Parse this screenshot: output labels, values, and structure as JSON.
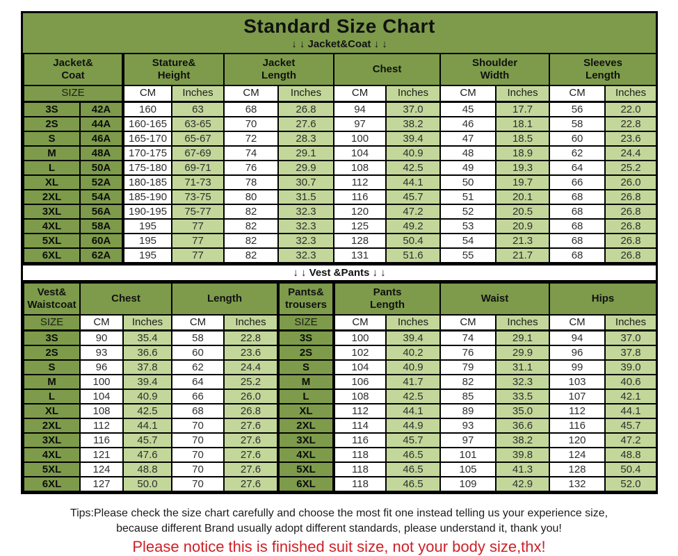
{
  "title": "Standard Size Chart",
  "banners": {
    "jacket": "↓ ↓  Jacket&Coat  ↓ ↓",
    "vest": "↓ ↓  Vest &Pants  ↓ ↓"
  },
  "colors": {
    "olive": "#7d9b4a",
    "cell_green": "#c3d79a",
    "notice_red": "#cc2128"
  },
  "chart_data": [
    {
      "type": "table",
      "title": "Jacket&Coat",
      "group_columns": [
        {
          "lines": [
            "Jacket&",
            "Coat"
          ],
          "span": 2
        },
        {
          "lines": [
            "Stature&",
            "Height"
          ],
          "span": 2
        },
        {
          "lines": [
            "Jacket",
            "Length"
          ],
          "span": 2
        },
        {
          "lines": [
            "Chest"
          ],
          "span": 2
        },
        {
          "lines": [
            "Shoulder",
            "Width"
          ],
          "span": 2
        },
        {
          "lines": [
            "Sleeves",
            "Length"
          ],
          "span": 2
        }
      ],
      "unit_columns": [
        {
          "label": "SIZE",
          "span": 2,
          "kind": "size"
        },
        {
          "label": "CM",
          "span": 1,
          "kind": "cm"
        },
        {
          "label": "Inches",
          "span": 1,
          "kind": "inches"
        },
        {
          "label": "CM",
          "span": 1,
          "kind": "cm"
        },
        {
          "label": "Inches",
          "span": 1,
          "kind": "inches"
        },
        {
          "label": "CM",
          "span": 1,
          "kind": "cm"
        },
        {
          "label": "Inches",
          "span": 1,
          "kind": "inches"
        },
        {
          "label": "CM",
          "span": 1,
          "kind": "cm"
        },
        {
          "label": "Inches",
          "span": 1,
          "kind": "inches"
        },
        {
          "label": "CM",
          "span": 1,
          "kind": "cm"
        },
        {
          "label": "Inches",
          "span": 1,
          "kind": "inches"
        }
      ],
      "rows": [
        [
          "3S",
          "42A",
          "160",
          "63",
          "68",
          "26.8",
          "94",
          "37.0",
          "45",
          "17.7",
          "56",
          "22.0"
        ],
        [
          "2S",
          "44A",
          "160-165",
          "63-65",
          "70",
          "27.6",
          "97",
          "38.2",
          "46",
          "18.1",
          "58",
          "22.8"
        ],
        [
          "S",
          "46A",
          "165-170",
          "65-67",
          "72",
          "28.3",
          "100",
          "39.4",
          "47",
          "18.5",
          "60",
          "23.6"
        ],
        [
          "M",
          "48A",
          "170-175",
          "67-69",
          "74",
          "29.1",
          "104",
          "40.9",
          "48",
          "18.9",
          "62",
          "24.4"
        ],
        [
          "L",
          "50A",
          "175-180",
          "69-71",
          "76",
          "29.9",
          "108",
          "42.5",
          "49",
          "19.3",
          "64",
          "25.2"
        ],
        [
          "XL",
          "52A",
          "180-185",
          "71-73",
          "78",
          "30.7",
          "112",
          "44.1",
          "50",
          "19.7",
          "66",
          "26.0"
        ],
        [
          "2XL",
          "54A",
          "185-190",
          "73-75",
          "80",
          "31.5",
          "116",
          "45.7",
          "51",
          "20.1",
          "68",
          "26.8"
        ],
        [
          "3XL",
          "56A",
          "190-195",
          "75-77",
          "82",
          "32.3",
          "120",
          "47.2",
          "52",
          "20.5",
          "68",
          "26.8"
        ],
        [
          "4XL",
          "58A",
          "195",
          "77",
          "82",
          "32.3",
          "125",
          "49.2",
          "53",
          "20.9",
          "68",
          "26.8"
        ],
        [
          "5XL",
          "60A",
          "195",
          "77",
          "82",
          "32.3",
          "128",
          "50.4",
          "54",
          "21.3",
          "68",
          "26.8"
        ],
        [
          "6XL",
          "62A",
          "195",
          "77",
          "82",
          "32.3",
          "131",
          "51.6",
          "55",
          "21.7",
          "68",
          "26.8"
        ]
      ]
    },
    {
      "type": "table",
      "title": "Vest &Pants",
      "group_columns": [
        {
          "lines": [
            "Vest&",
            "Waistcoat"
          ],
          "span": 1
        },
        {
          "lines": [
            "Chest"
          ],
          "span": 2
        },
        {
          "lines": [
            "Length"
          ],
          "span": 2
        },
        {
          "lines": [
            "Pants&",
            "trousers"
          ],
          "span": 1
        },
        {
          "lines": [
            "Pants",
            "Length"
          ],
          "span": 2
        },
        {
          "lines": [
            "Waist"
          ],
          "span": 2
        },
        {
          "lines": [
            "Hips"
          ],
          "span": 2
        }
      ],
      "unit_columns": [
        {
          "label": "SIZE",
          "span": 1,
          "kind": "size"
        },
        {
          "label": "CM",
          "span": 1,
          "kind": "cm"
        },
        {
          "label": "Inches",
          "span": 1,
          "kind": "inches"
        },
        {
          "label": "CM",
          "span": 1,
          "kind": "cm"
        },
        {
          "label": "Inches",
          "span": 1,
          "kind": "inches"
        },
        {
          "label": "SIZE",
          "span": 1,
          "kind": "size"
        },
        {
          "label": "CM",
          "span": 1,
          "kind": "cm"
        },
        {
          "label": "Inches",
          "span": 1,
          "kind": "inches"
        },
        {
          "label": "CM",
          "span": 1,
          "kind": "cm"
        },
        {
          "label": "Inches",
          "span": 1,
          "kind": "inches"
        },
        {
          "label": "CM",
          "span": 1,
          "kind": "cm"
        },
        {
          "label": "Inches",
          "span": 1,
          "kind": "inches"
        }
      ],
      "rows": [
        [
          "3S",
          "90",
          "35.4",
          "58",
          "22.8",
          "3S",
          "100",
          "39.4",
          "74",
          "29.1",
          "94",
          "37.0"
        ],
        [
          "2S",
          "93",
          "36.6",
          "60",
          "23.6",
          "2S",
          "102",
          "40.2",
          "76",
          "29.9",
          "96",
          "37.8"
        ],
        [
          "S",
          "96",
          "37.8",
          "62",
          "24.4",
          "S",
          "104",
          "40.9",
          "79",
          "31.1",
          "99",
          "39.0"
        ],
        [
          "M",
          "100",
          "39.4",
          "64",
          "25.2",
          "M",
          "106",
          "41.7",
          "82",
          "32.3",
          "103",
          "40.6"
        ],
        [
          "L",
          "104",
          "40.9",
          "66",
          "26.0",
          "L",
          "108",
          "42.5",
          "85",
          "33.5",
          "107",
          "42.1"
        ],
        [
          "XL",
          "108",
          "42.5",
          "68",
          "26.8",
          "XL",
          "112",
          "44.1",
          "89",
          "35.0",
          "112",
          "44.1"
        ],
        [
          "2XL",
          "112",
          "44.1",
          "70",
          "27.6",
          "2XL",
          "114",
          "44.9",
          "93",
          "36.6",
          "116",
          "45.7"
        ],
        [
          "3XL",
          "116",
          "45.7",
          "70",
          "27.6",
          "3XL",
          "116",
          "45.7",
          "97",
          "38.2",
          "120",
          "47.2"
        ],
        [
          "4XL",
          "121",
          "47.6",
          "70",
          "27.6",
          "4XL",
          "118",
          "46.5",
          "101",
          "39.8",
          "124",
          "48.8"
        ],
        [
          "5XL",
          "124",
          "48.8",
          "70",
          "27.6",
          "5XL",
          "118",
          "46.5",
          "105",
          "41.3",
          "128",
          "50.4"
        ],
        [
          "6XL",
          "127",
          "50.0",
          "70",
          "27.6",
          "6XL",
          "118",
          "46.5",
          "109",
          "42.9",
          "132",
          "52.0"
        ]
      ]
    }
  ],
  "footer": {
    "tips_line1": "Tips:Please check the size chart carefully and choose the most fit one instead telling us your experience size,",
    "tips_line2": "because different Brand usually adopt different standards, please understand it, thank you!",
    "notice": "Please notice this is finished suit size, not your body size,thx!"
  }
}
